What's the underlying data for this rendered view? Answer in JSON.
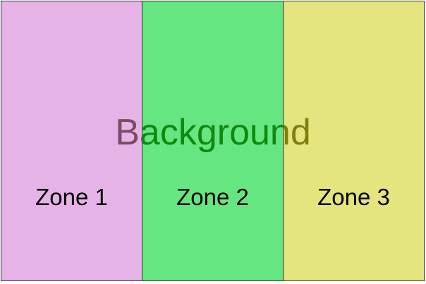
{
  "background": {
    "label": "Background",
    "tint_over_zone_1": "#7a4a66",
    "tint_over_zone_2": "#118811",
    "tint_over_zone_3": "#7f7f10"
  },
  "zones": [
    {
      "label": "Zone 1",
      "color": "#e5b3e5"
    },
    {
      "label": "Zone 2",
      "color": "#66e680"
    },
    {
      "label": "Zone 3",
      "color": "#e5e580"
    }
  ],
  "border_color": "#333333"
}
